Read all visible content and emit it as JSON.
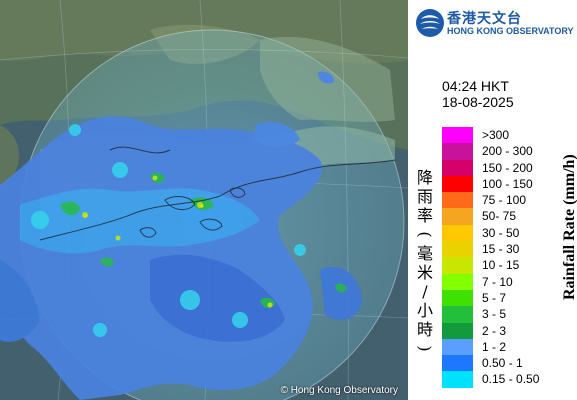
{
  "map": {
    "copyright": "© Hong Kong Observatory"
  },
  "header": {
    "org_name_cn": "香港天文台",
    "org_name_en": "HONG KONG OBSERVATORY"
  },
  "timestamp": {
    "time": "04:24 HKT",
    "date": "18-08-2025"
  },
  "legend": {
    "title_cn_chars": [
      "降",
      "雨",
      "率",
      "(",
      "毫",
      "米",
      "/",
      "小",
      "時",
      ")"
    ],
    "title_en": "Rainfall Rate (mm/h)",
    "items": [
      {
        "label": ">300",
        "color": "#ff00ff"
      },
      {
        "label": "200 - 300",
        "color": "#c8129c"
      },
      {
        "label": "150 - 200",
        "color": "#d6006a"
      },
      {
        "label": "100 - 150",
        "color": "#ff0000"
      },
      {
        "label": "75 - 100",
        "color": "#ff6a1a"
      },
      {
        "label": "50- 75",
        "color": "#f5a51f"
      },
      {
        "label": "30 - 50",
        "color": "#ffc800"
      },
      {
        "label": "15 - 30",
        "color": "#ead200"
      },
      {
        "label": "10 - 15",
        "color": "#c8e600"
      },
      {
        "label": "7 - 10",
        "color": "#82ff00"
      },
      {
        "label": "5 - 7",
        "color": "#40e000"
      },
      {
        "label": "3 - 5",
        "color": "#22c03a"
      },
      {
        "label": "2 - 3",
        "color": "#129a3c"
      },
      {
        "label": "1 - 2",
        "color": "#5a9fff"
      },
      {
        "label": "0.50 - 1",
        "color": "#1e78ff"
      },
      {
        "label": "0.15 - 0.50",
        "color": "#00e0ff"
      }
    ]
  }
}
